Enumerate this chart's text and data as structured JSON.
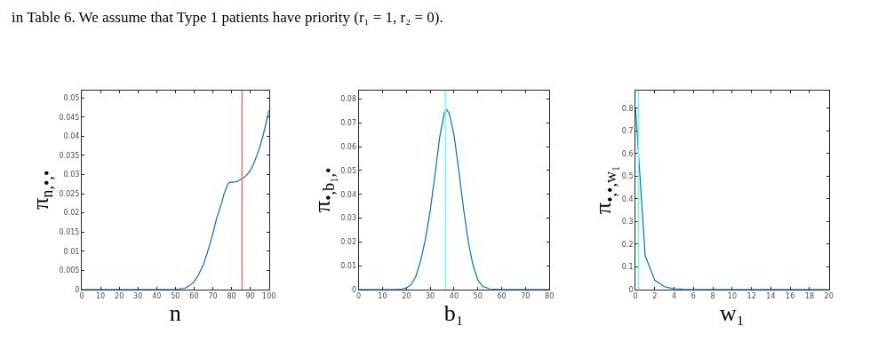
{
  "chart_data": [
    {
      "type": "line",
      "xlabel": "n",
      "ylabel": "π$_{n,•,•}$",
      "annotations": [
        "in Table 6. We assume that Type 1 patients have priority (r₁ = 1, r₂ = 0)."
      ],
      "x": [
        0,
        10,
        20,
        30,
        40,
        50,
        52,
        55,
        57,
        60,
        62,
        65,
        67,
        70,
        72,
        75,
        76,
        78,
        79,
        80,
        82,
        83,
        84,
        86,
        88,
        90,
        92,
        95,
        97,
        100
      ],
      "series": [
        {
          "color": "#0072bd",
          "values": [
            0,
            0,
            0,
            0,
            0,
            0,
            0.0001,
            0.0003,
            0.0008,
            0.002,
            0.0035,
            0.0065,
            0.0095,
            0.0145,
            0.0185,
            0.023,
            0.025,
            0.0275,
            0.028,
            0.028,
            0.0281,
            0.0282,
            0.0285,
            0.029,
            0.0298,
            0.031,
            0.033,
            0.037,
            0.0405,
            0.0468
          ]
        }
      ],
      "xlim": [
        0,
        100
      ],
      "xticks": [
        0,
        10,
        20,
        30,
        40,
        50,
        60,
        70,
        80,
        90,
        100
      ],
      "ylim": [
        0,
        0.052
      ],
      "yticks": [
        0,
        0.005,
        0.01,
        0.015,
        0.02,
        0.025,
        0.03,
        0.035,
        0.04,
        0.045,
        0.05
      ],
      "ref_lines": [
        {
          "axis": "x",
          "value": 85.6,
          "color": "#ff6f6f"
        }
      ]
    },
    {
      "type": "line",
      "xlabel": "b₁",
      "ylabel": "π$_{•,b₁,•}$",
      "x": [
        0,
        15,
        18,
        20,
        22,
        24,
        26,
        28,
        30,
        32,
        34,
        36,
        37,
        38,
        40,
        42,
        44,
        46,
        48,
        50,
        52,
        55,
        60,
        70,
        80
      ],
      "series": [
        {
          "color": "#0072bd",
          "values": [
            0,
            0,
            0.0002,
            0.0006,
            0.002,
            0.0055,
            0.012,
            0.021,
            0.033,
            0.048,
            0.064,
            0.0745,
            0.0755,
            0.074,
            0.065,
            0.05,
            0.034,
            0.02,
            0.01,
            0.004,
            0.0013,
            0.0002,
            0,
            0,
            0
          ]
        }
      ],
      "xlim": [
        0,
        80
      ],
      "xticks": [
        0,
        10,
        20,
        30,
        40,
        50,
        60,
        70,
        80
      ],
      "ylim": [
        0,
        0.0837
      ],
      "yticks": [
        0,
        0.01,
        0.02,
        0.03,
        0.04,
        0.05,
        0.06,
        0.07,
        0.08
      ],
      "ref_lines": [
        {
          "axis": "x",
          "value": 36.5,
          "color": "#66ffff"
        }
      ]
    },
    {
      "type": "line",
      "xlabel": "w₁",
      "ylabel": "π$_{•,•,w₁}$",
      "x": [
        0,
        1,
        2,
        3,
        4,
        5,
        6,
        8,
        10,
        12,
        14,
        16,
        18,
        20
      ],
      "series": [
        {
          "color": "#0072bd",
          "values": [
            0.8,
            0.148,
            0.04,
            0.012,
            0.003,
            0.001,
            0,
            0,
            0,
            0,
            0,
            0,
            0,
            0
          ]
        }
      ],
      "xlim": [
        0,
        20
      ],
      "xticks": [
        0,
        2,
        4,
        6,
        8,
        10,
        12,
        14,
        16,
        18,
        20
      ],
      "ylim": [
        0,
        0.879
      ],
      "yticks": [
        0,
        0.1,
        0.2,
        0.3,
        0.4,
        0.5,
        0.6,
        0.7,
        0.8
      ],
      "ref_lines": [
        {
          "axis": "x",
          "value": 0.3,
          "color": "#66ffff"
        }
      ]
    }
  ]
}
